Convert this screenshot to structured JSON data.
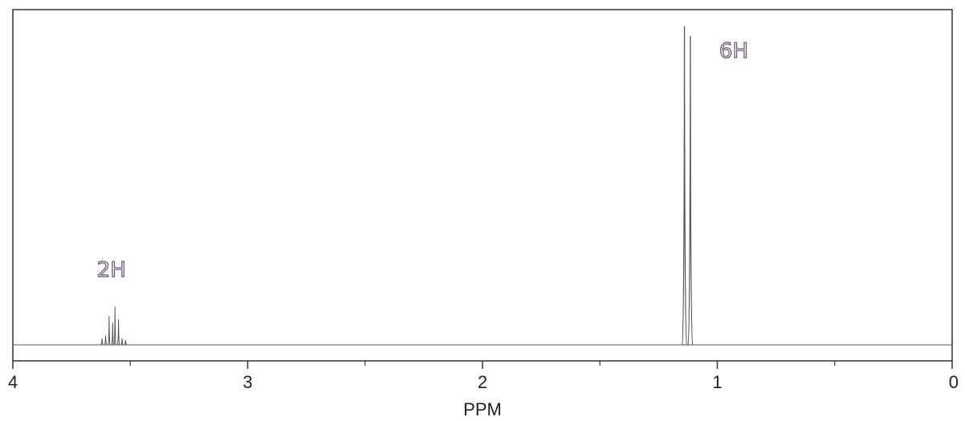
{
  "chart_data": {
    "type": "line",
    "xlabel": "PPM",
    "xlim": [
      4,
      0
    ],
    "x_reversed": true,
    "xticks": [
      4,
      3,
      2,
      1,
      0
    ],
    "xtick_labels": [
      "4",
      "3",
      "2",
      "1",
      "0"
    ],
    "minor_xticks": [
      3.5,
      2.5,
      1.5,
      0.5
    ],
    "ylim": [
      0,
      1
    ],
    "grid": false,
    "series": [
      {
        "peaks": [
          {
            "x": 3.62,
            "y": 0.02
          },
          {
            "x": 3.605,
            "y": 0.03
          },
          {
            "x": 3.59,
            "y": 0.09
          },
          {
            "x": 3.575,
            "y": 0.07
          },
          {
            "x": 3.565,
            "y": 0.12
          },
          {
            "x": 3.55,
            "y": 0.08
          },
          {
            "x": 3.535,
            "y": 0.02
          },
          {
            "x": 3.52,
            "y": 0.015
          },
          {
            "x": 1.14,
            "y": 1.0
          },
          {
            "x": 1.115,
            "y": 0.97
          }
        ]
      }
    ],
    "annotations": [
      {
        "text": "2H",
        "x": 3.58
      },
      {
        "text": "6H",
        "x": 0.93
      }
    ],
    "colors": {
      "line": "#555555",
      "frame": "#333333",
      "annotation": "#6a5a78"
    }
  }
}
